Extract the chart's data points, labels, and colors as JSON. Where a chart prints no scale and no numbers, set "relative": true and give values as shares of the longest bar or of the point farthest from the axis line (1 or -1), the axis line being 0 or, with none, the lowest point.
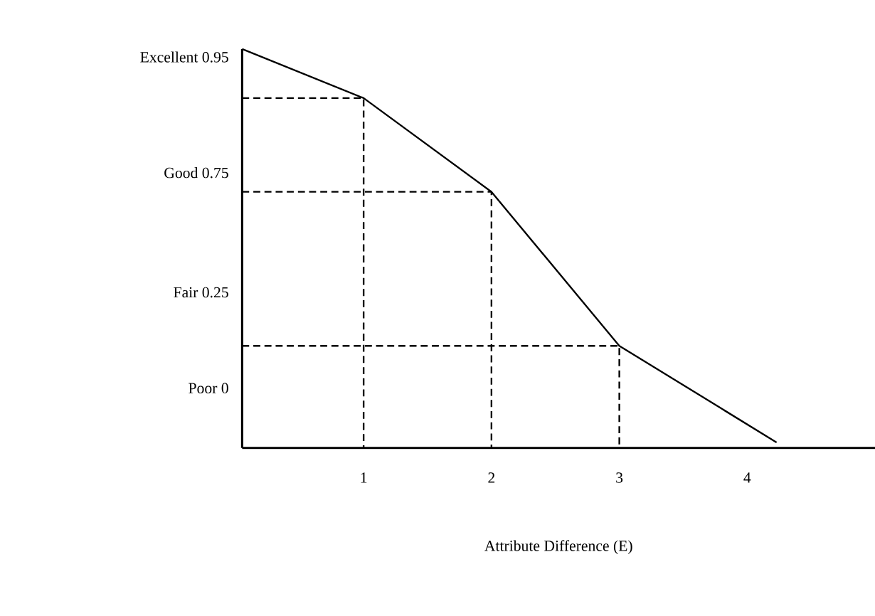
{
  "chart_data": {
    "type": "line",
    "relative": true,
    "xlabel": "Attribute Difference (E)",
    "xlim": [
      0.05,
      5.0
    ],
    "xticks": [
      1,
      2,
      3,
      4
    ],
    "annotations": [
      "Excellent 0.95",
      "Good 0.75",
      "Fair 0.25",
      "Poor 0"
    ],
    "grid": false,
    "marker": "none",
    "series": [
      {
        "color": "#000000",
        "line_style": "solid",
        "x": [
          0.05,
          1,
          2,
          3,
          4.23
        ],
        "values": [
          1.0,
          0.877,
          0.642,
          0.256,
          0.014
        ]
      },
      {
        "color": "#000000",
        "line_style": "dashed",
        "x": [
          0.05,
          1,
          1
        ],
        "values": [
          0.877,
          0.877,
          0
        ]
      },
      {
        "color": "#000000",
        "line_style": "dashed",
        "x": [
          0.05,
          2,
          2
        ],
        "values": [
          0.642,
          0.642,
          0
        ]
      },
      {
        "color": "#000000",
        "line_style": "dashed",
        "x": [
          0.05,
          3,
          3
        ],
        "values": [
          0.256,
          0.256,
          0
        ]
      }
    ]
  }
}
